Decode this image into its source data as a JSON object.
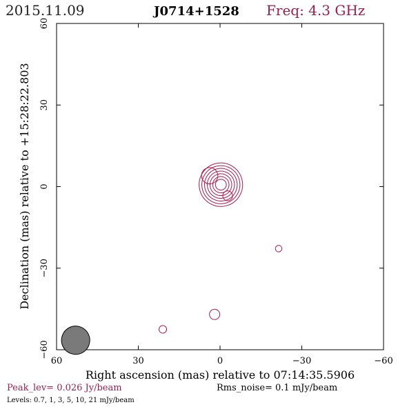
{
  "header": {
    "date": "2015.11.09",
    "source": "J0714+1528",
    "freq": "Freq: 4.3 GHz"
  },
  "footer": {
    "peak": "Peak_lev=  0.026 Jy/beam",
    "rms": "Rms_noise=  0.1 mJy/beam",
    "levels": "Levels: 0.7,    1,    3,    5,   10,   21 mJy/beam"
  },
  "colors": {
    "contour": "#b0184a",
    "accent": "#9c1e4c",
    "beam": "#7a7a7a"
  },
  "chart_data": {
    "type": "contour",
    "xlabel": "Right ascension (mas) relative to 07:14:35.5906",
    "ylabel": "Declination (mas) relative to +15:28:22.803",
    "xlim": [
      60,
      -60
    ],
    "ylim": [
      -60,
      60
    ],
    "xticks": [
      60,
      30,
      0,
      -30,
      -60
    ],
    "yticks": [
      -60,
      -30,
      0,
      30,
      60
    ],
    "levels_mJy": [
      0.7,
      1,
      3,
      5,
      10,
      21
    ],
    "peak_Jy_per_beam": 0.026,
    "rms_mJy_per_beam": 0.1,
    "beam": {
      "x": 53,
      "y": -56.5,
      "major": 5.2,
      "minor": 2.3,
      "pa": -25
    },
    "components": [
      {
        "name": "core",
        "x": -0.3,
        "y": 0.7,
        "pa": -15,
        "contours": [
          {
            "a": 3.4,
            "b": 8.0
          },
          {
            "a": 2.9,
            "b": 7.0
          },
          {
            "a": 2.4,
            "b": 6.0
          },
          {
            "a": 2.0,
            "b": 5.0
          },
          {
            "a": 1.6,
            "b": 4.0
          },
          {
            "a": 1.2,
            "b": 3.0
          },
          {
            "a": 0.8,
            "b": 2.0
          }
        ]
      },
      {
        "name": "core-nw-lobe",
        "x": 3.8,
        "y": 4.0,
        "pa": -10,
        "contours": [
          {
            "a": 1.4,
            "b": 3.0
          }
        ]
      },
      {
        "name": "core-sw-lobe",
        "x": -2.8,
        "y": -3.4,
        "pa": 0,
        "contours": [
          {
            "a": 1.2,
            "b": 1.8
          }
        ]
      },
      {
        "name": "blob-e",
        "x": -21.5,
        "y": -22.8,
        "pa": -10,
        "contours": [
          {
            "a": 0.45,
            "b": 1.2
          }
        ]
      },
      {
        "name": "blob-s",
        "x": 2.0,
        "y": -47.0,
        "pa": -25,
        "contours": [
          {
            "a": 0.9,
            "b": 1.9
          }
        ]
      },
      {
        "name": "blob-sw",
        "x": 21.0,
        "y": -52.5,
        "pa": -20,
        "contours": [
          {
            "a": 0.7,
            "b": 1.4
          }
        ]
      }
    ]
  }
}
